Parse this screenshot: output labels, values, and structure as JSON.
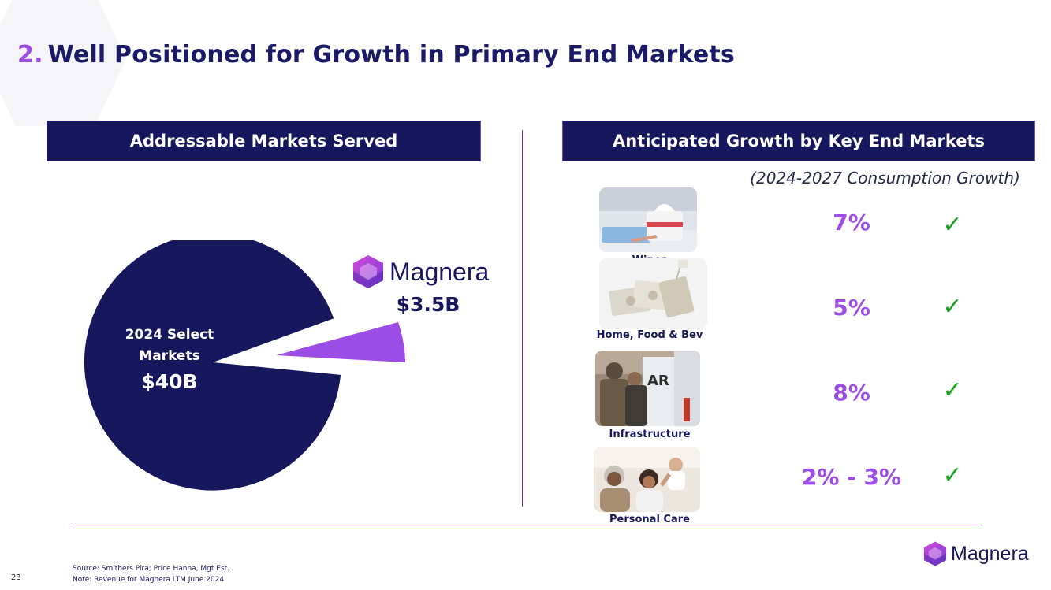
{
  "title": {
    "number": "2.",
    "text": "Well Positioned for Growth in Primary End Markets"
  },
  "left_panel": {
    "header": "Addressable Markets Served",
    "pie": {
      "main_label": "2024 Select Markets",
      "main_value": "$40B",
      "slice_brand": "Magnera",
      "slice_value": "$3.5B",
      "colors": {
        "main": "#17175e",
        "slice": "#9b4de6"
      }
    }
  },
  "right_panel": {
    "header": "Anticipated Growth by Key End Markets",
    "subtitle": "(2024-2027 Consumption Growth)",
    "markets": [
      {
        "label": "Wipes",
        "growth": "7%",
        "check": "✓",
        "image": "wipes-photo"
      },
      {
        "label": "Home, Food & Bev",
        "growth": "5%",
        "check": "✓",
        "image": "tea-bags-photo"
      },
      {
        "label": "Infrastructure",
        "growth": "8%",
        "check": "✓",
        "image": "construction-workers-photo"
      },
      {
        "label": "Personal Care",
        "growth": "2% - 3%",
        "check": "✓",
        "image": "family-photo"
      }
    ]
  },
  "footer": {
    "brand": "Magnera",
    "page_number": "23",
    "source": "Source: Smithers Pira; Price Hanna, Mgt Est.",
    "note": "Note: Revenue for Magnera LTM June 2024"
  },
  "colors": {
    "navy": "#17175e",
    "purple": "#9b4de6",
    "check_green": "#18a51e",
    "divider": "#7a2c8c"
  }
}
